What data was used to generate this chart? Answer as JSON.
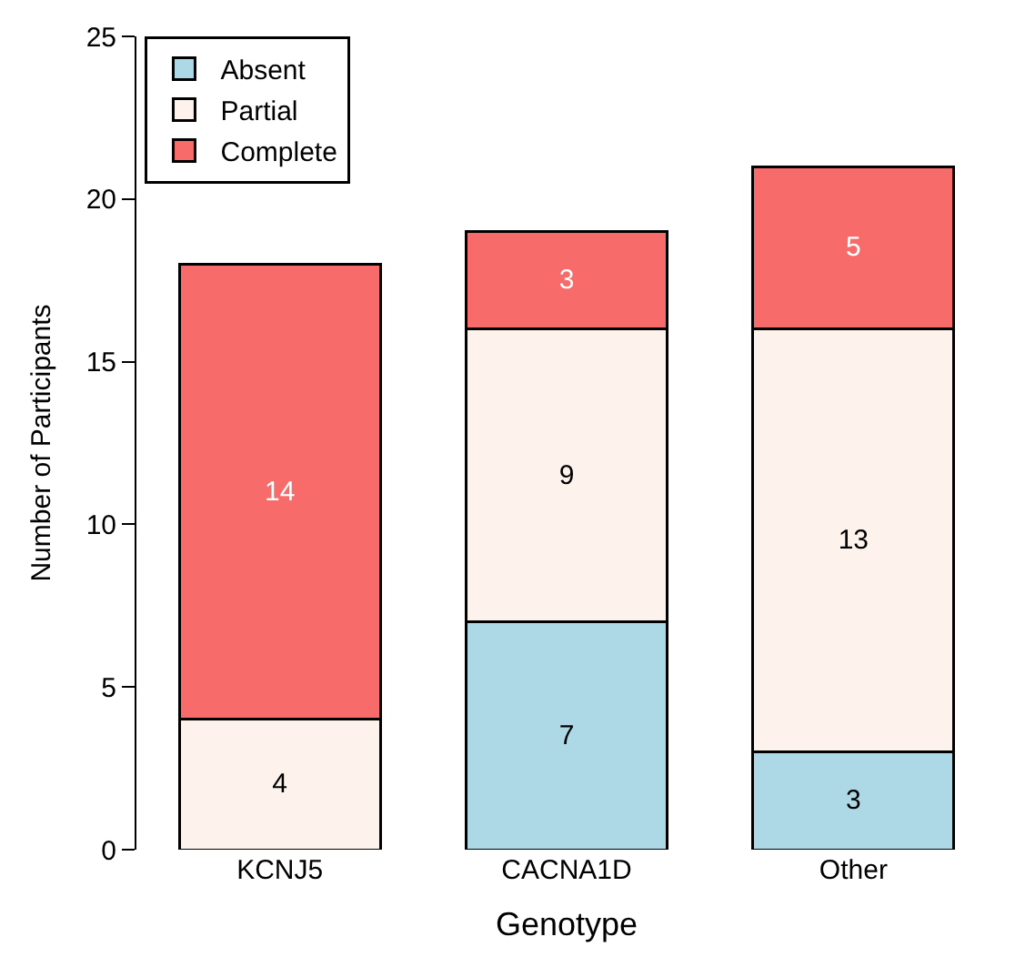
{
  "chart_data": {
    "type": "bar",
    "stacked": true,
    "xlabel": "Genotype",
    "ylabel": "Number of Participants",
    "categories": [
      "KCNJ5",
      "CACNA1D",
      "Other"
    ],
    "series": [
      {
        "name": "Absent",
        "color": "#add8e6",
        "values": [
          0,
          7,
          3
        ],
        "value_labels": [
          null,
          "7",
          "3"
        ]
      },
      {
        "name": "Partial",
        "color": "#fdf3ec",
        "values": [
          4,
          9,
          13
        ],
        "value_labels": [
          "4",
          "9",
          "13"
        ]
      },
      {
        "name": "Complete",
        "color": "#f86b6b",
        "values": [
          14,
          3,
          5
        ],
        "value_labels": [
          "14",
          "3",
          "5"
        ]
      }
    ],
    "ylim": [
      0,
      25
    ],
    "yticks": [
      0,
      5,
      10,
      15,
      20,
      25
    ],
    "legend": "top left"
  }
}
